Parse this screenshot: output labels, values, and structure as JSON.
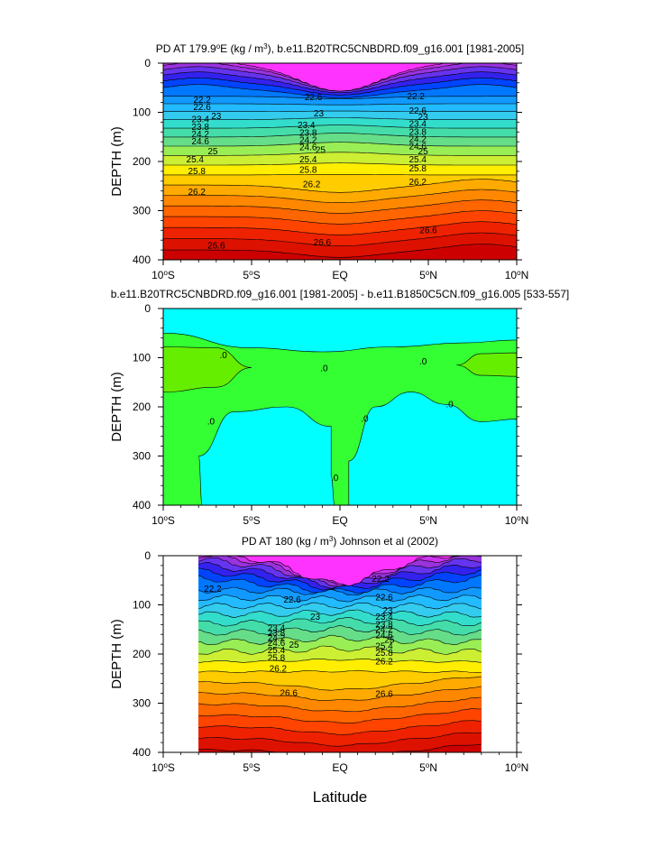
{
  "colors": {
    "ramp": [
      "#ff33ff",
      "#cc33ee",
      "#9933dd",
      "#6633ee",
      "#3322ee",
      "#0044ff",
      "#0077ff",
      "#1199ff",
      "#22bbff",
      "#33ccee",
      "#33ddcc",
      "#44ddaa",
      "#66dd88",
      "#99ee55",
      "#ccee33",
      "#ffee00",
      "#ffcc00",
      "#ffaa00",
      "#ff8800",
      "#ff6600",
      "#ff4400",
      "#ee2200",
      "#dd1100",
      "#cc0000"
    ],
    "diff_fill_a": "#00ffff",
    "diff_fill_b": "#33ff33",
    "diff_fill_c": "#66ee00"
  },
  "figure": {
    "xlabel": "Latitude"
  },
  "chart_data": [
    {
      "type": "heatmap",
      "title_parts": [
        "PD AT 179.9",
        "o",
        "E (kg / m",
        "3",
        "), b.e11.B20TRC5CNBDRD.f09_g16.001 [1981-2005]"
      ],
      "ylabel": "DEPTH (m)",
      "xlim": [
        -10,
        10
      ],
      "ylim": [
        400,
        0
      ],
      "y_ticks": [
        "0",
        "100",
        "200",
        "300",
        "400"
      ],
      "x_ticks": [
        [
          "10",
          "o",
          "S"
        ],
        [
          "5",
          "o",
          "S"
        ],
        [
          "EQ"
        ],
        [
          "5",
          "o",
          "N"
        ],
        [
          "10",
          "o",
          "N"
        ]
      ],
      "contour_levels": [
        22.2,
        22.6,
        23,
        23.4,
        23.8,
        24.2,
        24.6,
        25,
        25.4,
        25.8,
        26.2,
        26.6
      ],
      "contour_labels": [
        {
          "text": "22.2",
          "x": -7.8,
          "y": 75
        },
        {
          "text": "22.6",
          "x": -7.8,
          "y": 90
        },
        {
          "text": "23.4",
          "x": -7.9,
          "y": 115
        },
        {
          "text": "23",
          "x": -7.0,
          "y": 108
        },
        {
          "text": "23.8",
          "x": -7.9,
          "y": 130
        },
        {
          "text": "24.2",
          "x": -7.9,
          "y": 145
        },
        {
          "text": "24.6",
          "x": -7.9,
          "y": 160
        },
        {
          "text": "25",
          "x": -7.2,
          "y": 180
        },
        {
          "text": "25.4",
          "x": -8.2,
          "y": 196
        },
        {
          "text": "25.8",
          "x": -8.1,
          "y": 220
        },
        {
          "text": "26.2",
          "x": -8.1,
          "y": 262
        },
        {
          "text": "26.6",
          "x": -7.0,
          "y": 372
        },
        {
          "text": "22.6",
          "x": -1.5,
          "y": 70
        },
        {
          "text": "23",
          "x": -1.2,
          "y": 103
        },
        {
          "text": "23.4",
          "x": -1.9,
          "y": 127
        },
        {
          "text": "23.8",
          "x": -1.8,
          "y": 142
        },
        {
          "text": "24.2",
          "x": -1.8,
          "y": 157
        },
        {
          "text": "24.6",
          "x": -1.8,
          "y": 172
        },
        {
          "text": "25",
          "x": -1.1,
          "y": 177
        },
        {
          "text": "25.4",
          "x": -1.8,
          "y": 196
        },
        {
          "text": "25.8",
          "x": -1.8,
          "y": 217
        },
        {
          "text": "26.2",
          "x": -1.6,
          "y": 247
        },
        {
          "text": "26.6",
          "x": -1.0,
          "y": 365
        },
        {
          "text": "22.2",
          "x": 4.3,
          "y": 68
        },
        {
          "text": "22.6",
          "x": 4.4,
          "y": 97
        },
        {
          "text": "23",
          "x": 4.7,
          "y": 110
        },
        {
          "text": "23.4",
          "x": 4.4,
          "y": 124
        },
        {
          "text": "23.8",
          "x": 4.4,
          "y": 140
        },
        {
          "text": "24.2",
          "x": 4.4,
          "y": 155
        },
        {
          "text": "24.6",
          "x": 4.4,
          "y": 170
        },
        {
          "text": "25",
          "x": 4.7,
          "y": 180
        },
        {
          "text": "25.4",
          "x": 4.4,
          "y": 196
        },
        {
          "text": "25.8",
          "x": 4.4,
          "y": 215
        },
        {
          "text": "26.2",
          "x": 4.4,
          "y": 242
        },
        {
          "text": "26.6",
          "x": 5.0,
          "y": 340
        }
      ]
    },
    {
      "type": "heatmap",
      "title_parts": [
        "b.e11.B20TRC5CNBDRD.f09_g16.001 [1981-2005] - b.e11.B1850C5CN.f09_g16.005 [533-557]"
      ],
      "ylabel": "DEPTH (m)",
      "xlim": [
        -10,
        10
      ],
      "ylim": [
        400,
        0
      ],
      "y_ticks": [
        "0",
        "100",
        "200",
        "300",
        "400"
      ],
      "x_ticks": [
        [
          "10",
          "o",
          "S"
        ],
        [
          "5",
          "o",
          "S"
        ],
        [
          "EQ"
        ],
        [
          "5",
          "o",
          "N"
        ],
        [
          "10",
          "o",
          "N"
        ]
      ],
      "contour_labels": [
        {
          "text": ".0",
          "x": -6.6,
          "y": 95
        },
        {
          "text": ".0",
          "x": -0.9,
          "y": 122
        },
        {
          "text": ".0",
          "x": 4.7,
          "y": 108
        },
        {
          "text": ".0",
          "x": -7.3,
          "y": 230
        },
        {
          "text": ".0",
          "x": 1.4,
          "y": 225
        },
        {
          "text": ".0",
          "x": 6.2,
          "y": 195
        },
        {
          "text": ".0",
          "x": -0.3,
          "y": 345
        }
      ]
    },
    {
      "type": "heatmap",
      "title_parts": [
        "PD AT 180 (kg / m",
        "3",
        ") Johnson et al (2002)"
      ],
      "ylabel": "DEPTH (m)",
      "xlim": [
        -10,
        10
      ],
      "ylim": [
        400,
        0
      ],
      "data_xlim": [
        -8,
        8
      ],
      "y_ticks": [
        "0",
        "100",
        "200",
        "300",
        "400"
      ],
      "x_ticks": [
        [
          "10",
          "o",
          "S"
        ],
        [
          "5",
          "o",
          "S"
        ],
        [
          "EQ"
        ],
        [
          "5",
          "o",
          "N"
        ],
        [
          "10",
          "o",
          "N"
        ]
      ],
      "contour_labels": [
        {
          "text": "22.2",
          "x": -7.2,
          "y": 68
        },
        {
          "text": "22.6",
          "x": -2.7,
          "y": 90
        },
        {
          "text": "23",
          "x": -1.4,
          "y": 125
        },
        {
          "text": "23.4",
          "x": -3.6,
          "y": 148
        },
        {
          "text": "23.8",
          "x": -3.6,
          "y": 158
        },
        {
          "text": "24.2",
          "x": -3.6,
          "y": 168
        },
        {
          "text": "24.6",
          "x": -3.6,
          "y": 178
        },
        {
          "text": "25",
          "x": -2.6,
          "y": 182
        },
        {
          "text": "25.4",
          "x": -3.6,
          "y": 193
        },
        {
          "text": "25.8",
          "x": -3.6,
          "y": 208
        },
        {
          "text": "26.2",
          "x": -3.5,
          "y": 230
        },
        {
          "text": "26.6",
          "x": -2.9,
          "y": 280
        },
        {
          "text": "22.2",
          "x": 2.3,
          "y": 48
        },
        {
          "text": "22.6",
          "x": 2.5,
          "y": 85
        },
        {
          "text": "23",
          "x": 2.7,
          "y": 112
        },
        {
          "text": "23.4",
          "x": 2.5,
          "y": 125
        },
        {
          "text": "23.8",
          "x": 2.5,
          "y": 140
        },
        {
          "text": "24.2",
          "x": 2.5,
          "y": 150
        },
        {
          "text": "24.6",
          "x": 2.5,
          "y": 162
        },
        {
          "text": "25",
          "x": 2.8,
          "y": 172
        },
        {
          "text": "25.4",
          "x": 2.5,
          "y": 184
        },
        {
          "text": "25.8",
          "x": 2.5,
          "y": 198
        },
        {
          "text": "26.2",
          "x": 2.5,
          "y": 216
        },
        {
          "text": "26.6",
          "x": 2.5,
          "y": 282
        }
      ]
    }
  ]
}
